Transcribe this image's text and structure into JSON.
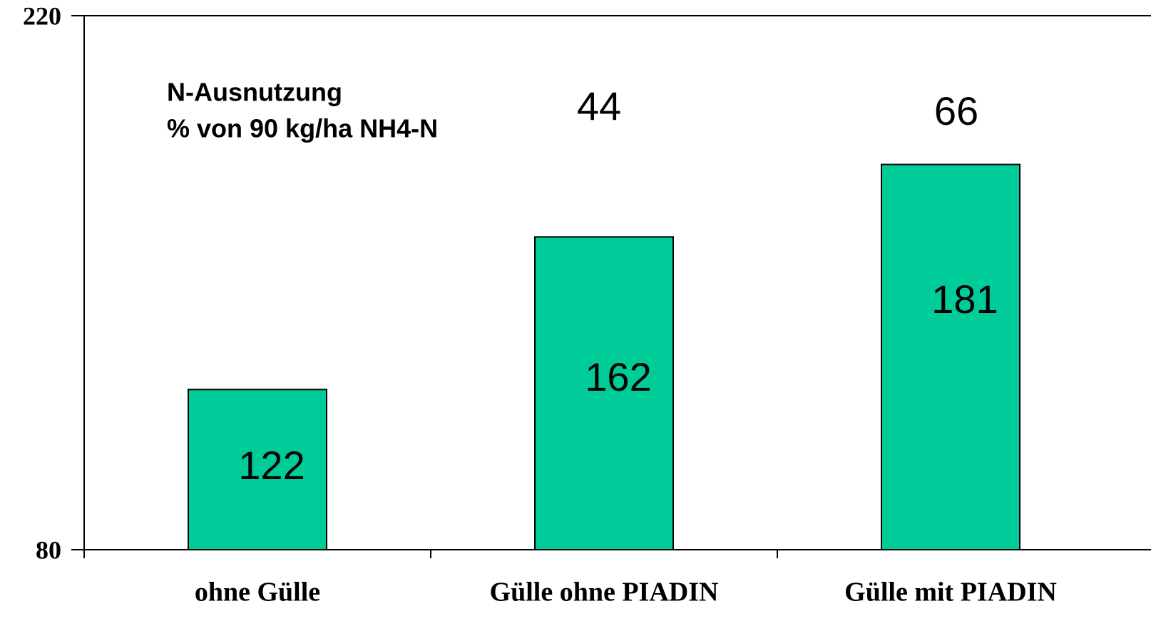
{
  "chart_data": {
    "type": "bar",
    "categories": [
      "ohne Gülle",
      "Gülle ohne PIADIN",
      "Gülle mit PIADIN"
    ],
    "values": [
      122,
      162,
      181
    ],
    "color": "#00cc99",
    "ylim": [
      80,
      220
    ],
    "yticks": [
      80,
      220
    ],
    "grid": false,
    "annotation": {
      "lines": [
        "N-Ausnutzung",
        "% von 90 kg/ha NH4-N"
      ],
      "values": [
        null,
        44,
        66
      ]
    }
  }
}
